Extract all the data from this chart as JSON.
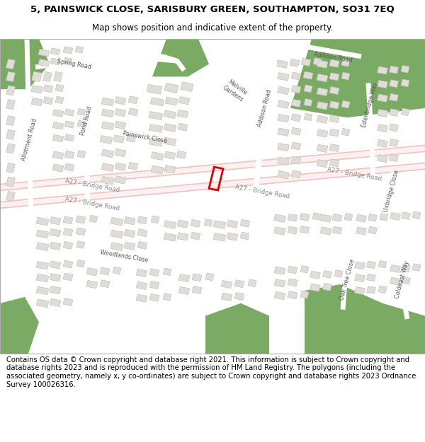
{
  "title_line1": "5, PAINSWICK CLOSE, SARISBURY GREEN, SOUTHAMPTON, SO31 7EQ",
  "title_line2": "Map shows position and indicative extent of the property.",
  "footer": "Contains OS data © Crown copyright and database right 2021. This information is subject to Crown copyright and database rights 2023 and is reproduced with the permission of HM Land Registry. The polygons (including the associated geometry, namely x, y co-ordinates) are subject to Crown copyright and database rights 2023 Ordnance Survey 100026316.",
  "map_bg": "#f0eeea",
  "road_white": "#ffffff",
  "major_road_color": "#f2c4c4",
  "building_fill": "#e0dcd8",
  "building_edge": "#c8c4be",
  "green_color": "#7aaa64",
  "highlight_color": "#dd0000",
  "label_color": "#555555",
  "title_fontsize": 9.5,
  "subtitle_fontsize": 8.5,
  "footer_fontsize": 7.2,
  "map_label_fontsize": 5.8,
  "major_road_label_fontsize": 6.2
}
